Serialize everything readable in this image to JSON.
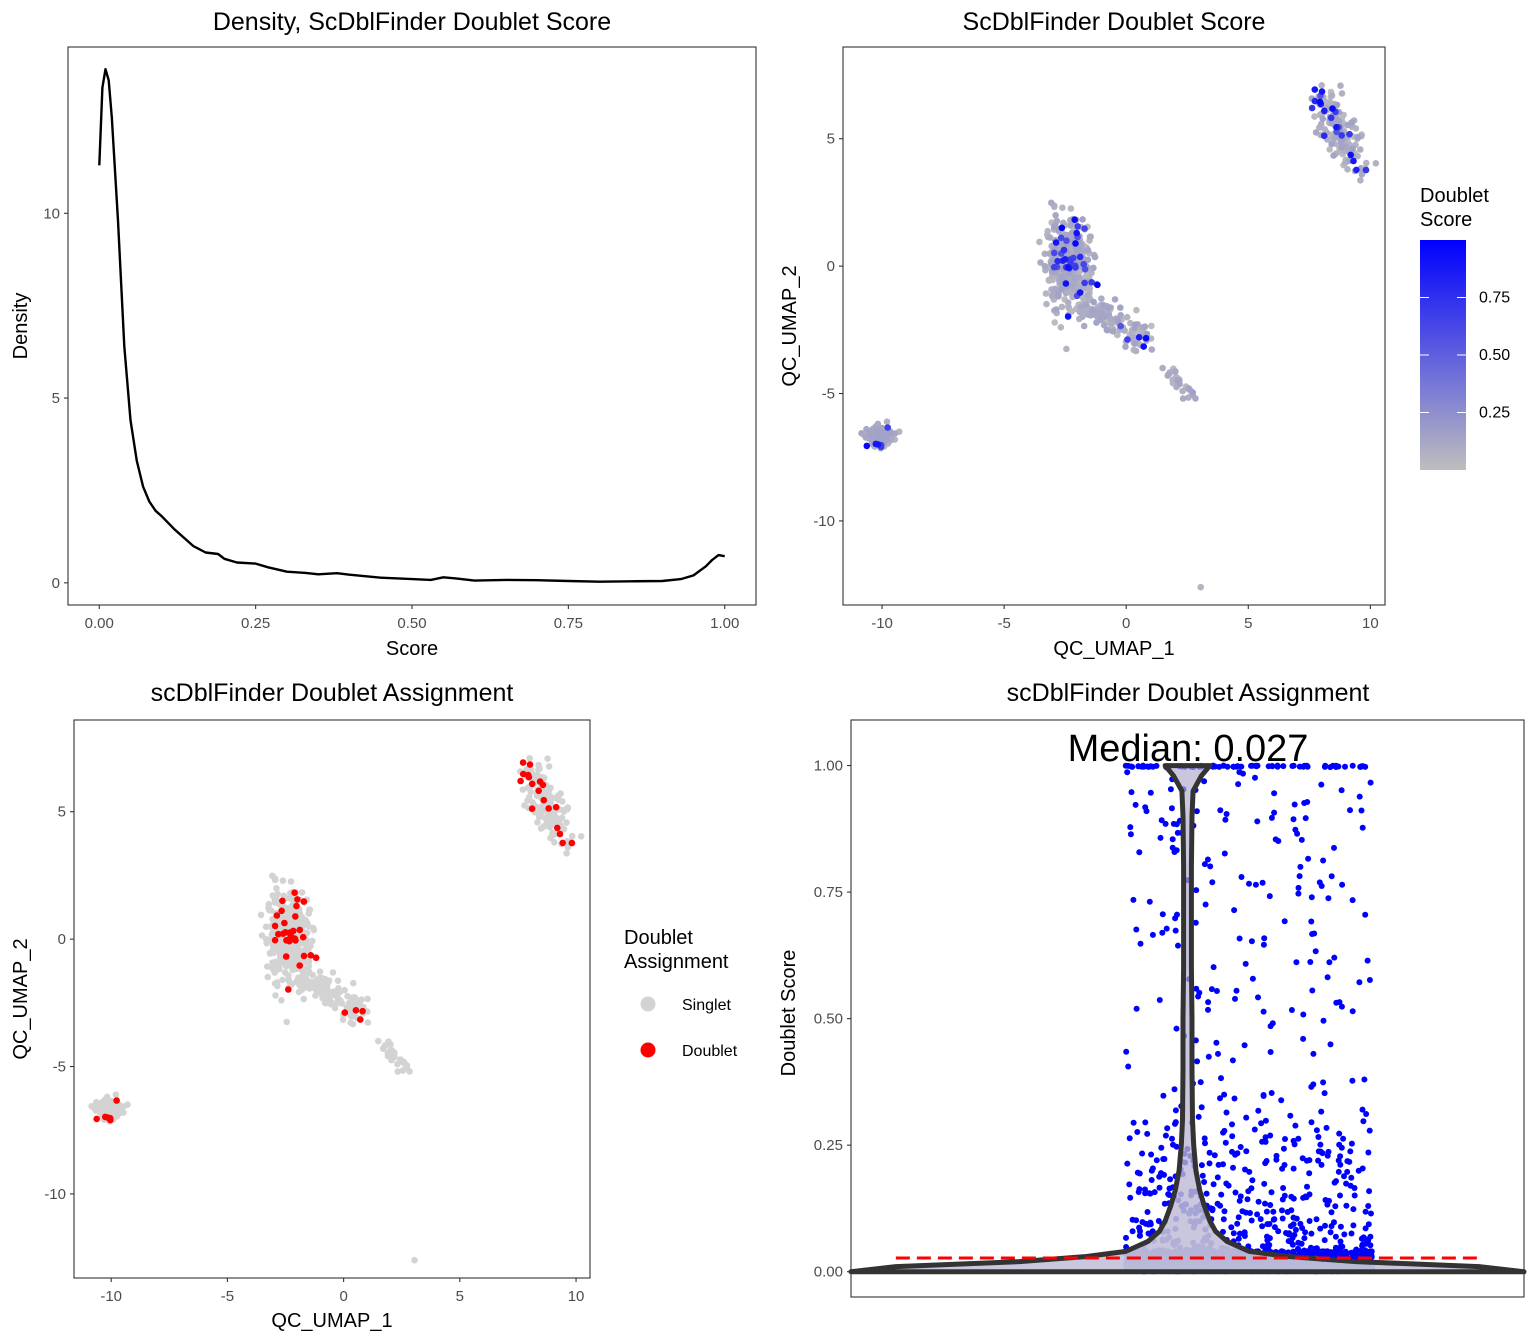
{
  "colors": {
    "singlet": "#d3d3d3",
    "doublet": "#ff0000",
    "score_low": "#bebebe",
    "score_high": "#0000ff",
    "density_line": "#000000",
    "violin_outline": "#333333",
    "median_line": "#ff0000"
  },
  "chart_data": [
    {
      "id": "density",
      "type": "line",
      "title": "Density, ScDblFinder Doublet Score",
      "xlabel": "Score",
      "ylabel": "Density",
      "xlim": [
        -0.05,
        1.05
      ],
      "ylim": [
        -0.6,
        14.5
      ],
      "xticks": [
        0,
        0.25,
        0.5,
        0.75,
        1
      ],
      "xtick_labels": [
        "0.00",
        "0.25",
        "0.50",
        "0.75",
        "1.00"
      ],
      "yticks": [
        0,
        5,
        10
      ],
      "ytick_labels": [
        "0",
        "5",
        "10"
      ],
      "grid": false,
      "series": [
        {
          "x": [
            0.0,
            0.005,
            0.01,
            0.015,
            0.02,
            0.03,
            0.04,
            0.05,
            0.06,
            0.07,
            0.08,
            0.09,
            0.1,
            0.12,
            0.15,
            0.17,
            0.19,
            0.2,
            0.22,
            0.25,
            0.27,
            0.3,
            0.33,
            0.35,
            0.38,
            0.4,
            0.45,
            0.5,
            0.53,
            0.55,
            0.57,
            0.6,
            0.65,
            0.7,
            0.75,
            0.8,
            0.85,
            0.9,
            0.93,
            0.95,
            0.97,
            0.98,
            0.99,
            1.0
          ],
          "y": [
            11.3,
            13.4,
            13.9,
            13.6,
            12.6,
            9.8,
            6.4,
            4.4,
            3.3,
            2.6,
            2.2,
            1.95,
            1.8,
            1.45,
            1.0,
            0.82,
            0.78,
            0.65,
            0.55,
            0.52,
            0.42,
            0.3,
            0.27,
            0.23,
            0.26,
            0.22,
            0.14,
            0.1,
            0.08,
            0.15,
            0.12,
            0.06,
            0.08,
            0.07,
            0.05,
            0.03,
            0.04,
            0.05,
            0.1,
            0.2,
            0.45,
            0.62,
            0.75,
            0.72
          ]
        }
      ]
    },
    {
      "id": "umap-score",
      "type": "scatter",
      "title": "ScDblFinder Doublet Score",
      "xlabel": "QC_UMAP_1",
      "ylabel": "QC_UMAP_2",
      "xlim": [
        -11.6,
        10.6
      ],
      "ylim": [
        -13.3,
        8.6
      ],
      "xticks": [
        -10,
        -5,
        0,
        5,
        10
      ],
      "xtick_labels": [
        "-10",
        "-5",
        "0",
        "5",
        "10"
      ],
      "yticks": [
        -10,
        -5,
        0,
        5
      ],
      "ytick_labels": [
        "-10",
        "-5",
        "0",
        "5"
      ],
      "grid": false,
      "color_by": "Doublet Score",
      "legend": {
        "title_lines": [
          "Doublet",
          "Score"
        ],
        "type": "gradient",
        "range": [
          0,
          1
        ],
        "breaks": [
          0.25,
          0.5,
          0.75
        ],
        "break_labels": [
          "0.25",
          "0.50",
          "0.75"
        ],
        "position": "right"
      },
      "clusters": [
        {
          "name": "main",
          "cx": -2.4,
          "cy": 0.2,
          "sx": 0.45,
          "sy": 0.8,
          "n": 420,
          "high_frac": 0.07
        },
        {
          "name": "main-tail",
          "from": [
            -2.0,
            -1.2
          ],
          "to": [
            0.8,
            -3.0
          ],
          "spread": 0.28,
          "n": 130,
          "high_frac": 0.05
        },
        {
          "name": "thin-tail",
          "from": [
            1.6,
            -4.0
          ],
          "to": [
            2.7,
            -5.1
          ],
          "spread": 0.12,
          "n": 30,
          "high_frac": 0.0
        },
        {
          "name": "top-right",
          "from": [
            7.9,
            6.8
          ],
          "to": [
            9.3,
            4.0
          ],
          "spread": 0.35,
          "n": 160,
          "high_frac": 0.12
        },
        {
          "name": "bottom-left",
          "cx": -10.1,
          "cy": -6.7,
          "sx": 0.25,
          "sy": 0.18,
          "n": 140,
          "high_frac": 0.03
        }
      ],
      "isolated_points": [
        {
          "x": 3.05,
          "y": -12.6
        },
        {
          "x": -2.45,
          "y": -3.25
        },
        {
          "x": -9.3,
          "y": -6.5
        }
      ]
    },
    {
      "id": "umap-assignment",
      "type": "scatter",
      "title": "scDblFinder Doublet Assignment",
      "xlabel": "QC_UMAP_1",
      "ylabel": "QC_UMAP_2",
      "xlim": [
        -11.6,
        10.6
      ],
      "ylim": [
        -13.3,
        8.6
      ],
      "xticks": [
        -10,
        -5,
        0,
        5,
        10
      ],
      "xtick_labels": [
        "-10",
        "-5",
        "0",
        "5",
        "10"
      ],
      "yticks": [
        -10,
        -5,
        0,
        5
      ],
      "ytick_labels": [
        "-10",
        "-5",
        "0",
        "5"
      ],
      "grid": false,
      "color_by": "Doublet Assignment",
      "legend": {
        "title_lines": [
          "Doublet",
          "Assignment"
        ],
        "type": "discrete",
        "entries": [
          "Singlet",
          "Doublet"
        ],
        "position": "right"
      }
    },
    {
      "id": "violin",
      "type": "violin",
      "title": "scDblFinder Doublet Assignment",
      "xlabel": "",
      "ylabel": "Doublet Score",
      "annotation": "Median: 0.027",
      "median": 0.027,
      "xlim": [
        0.4,
        1.6
      ],
      "ylim": [
        -0.05,
        1.09
      ],
      "yticks": [
        0,
        0.25,
        0.5,
        0.75,
        1
      ],
      "ytick_labels": [
        "0.00",
        "0.25",
        "0.50",
        "0.75",
        "1.00"
      ],
      "grid": false,
      "violin_profile": [
        [
          0.0,
          0.6
        ],
        [
          0.01,
          0.52
        ],
        [
          0.02,
          0.3
        ],
        [
          0.03,
          0.18
        ],
        [
          0.04,
          0.11
        ],
        [
          0.06,
          0.07
        ],
        [
          0.08,
          0.05
        ],
        [
          0.1,
          0.04
        ],
        [
          0.13,
          0.03
        ],
        [
          0.16,
          0.022
        ],
        [
          0.2,
          0.015
        ],
        [
          0.25,
          0.011
        ],
        [
          0.3,
          0.009
        ],
        [
          0.4,
          0.008
        ],
        [
          0.5,
          0.008
        ],
        [
          0.6,
          0.007
        ],
        [
          0.7,
          0.007
        ],
        [
          0.8,
          0.007
        ],
        [
          0.9,
          0.008
        ],
        [
          0.95,
          0.01
        ],
        [
          0.98,
          0.025
        ],
        [
          1.0,
          0.04
        ]
      ],
      "n_points": 1900
    }
  ]
}
